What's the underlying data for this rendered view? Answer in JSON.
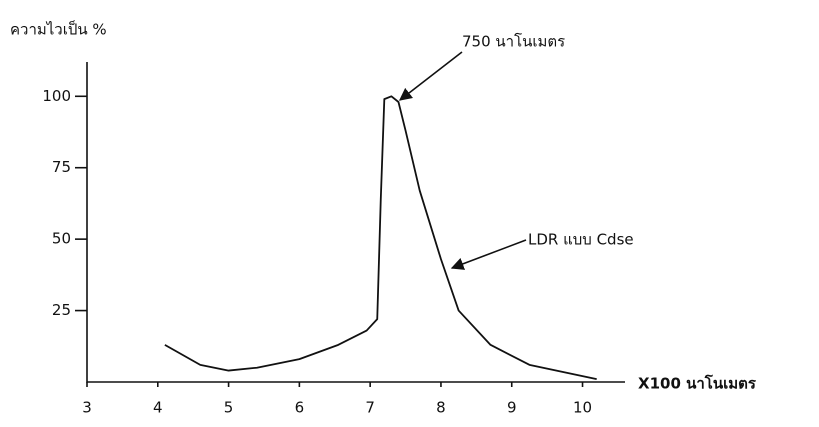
{
  "chart_data": {
    "type": "line",
    "y_label": "ความไวเป็น %",
    "x_label": "X100 นาโนเมตร",
    "x": [
      4.1,
      4.6,
      5.0,
      5.4,
      6.0,
      6.55,
      6.95,
      7.1,
      7.15,
      7.2,
      7.3,
      7.4,
      7.5,
      7.7,
      8.0,
      8.25,
      8.7,
      9.25,
      10.2
    ],
    "series": [
      {
        "name": "LDR แบบ Cdse",
        "color": "#111111",
        "values": [
          13,
          6,
          4,
          5,
          8,
          13,
          18,
          22,
          64,
          99,
          100,
          98,
          88,
          67,
          43,
          25,
          13,
          6,
          1
        ]
      }
    ],
    "annotations": [
      {
        "text": "750 นาโนเมตร"
      }
    ],
    "xlim": [
      3,
      10.6
    ],
    "xticks": [
      3,
      4,
      5,
      6,
      7,
      8,
      9,
      10
    ],
    "ylim": [
      0,
      112
    ],
    "yticks": [
      25,
      50,
      75,
      100
    ],
    "grid": false
  }
}
